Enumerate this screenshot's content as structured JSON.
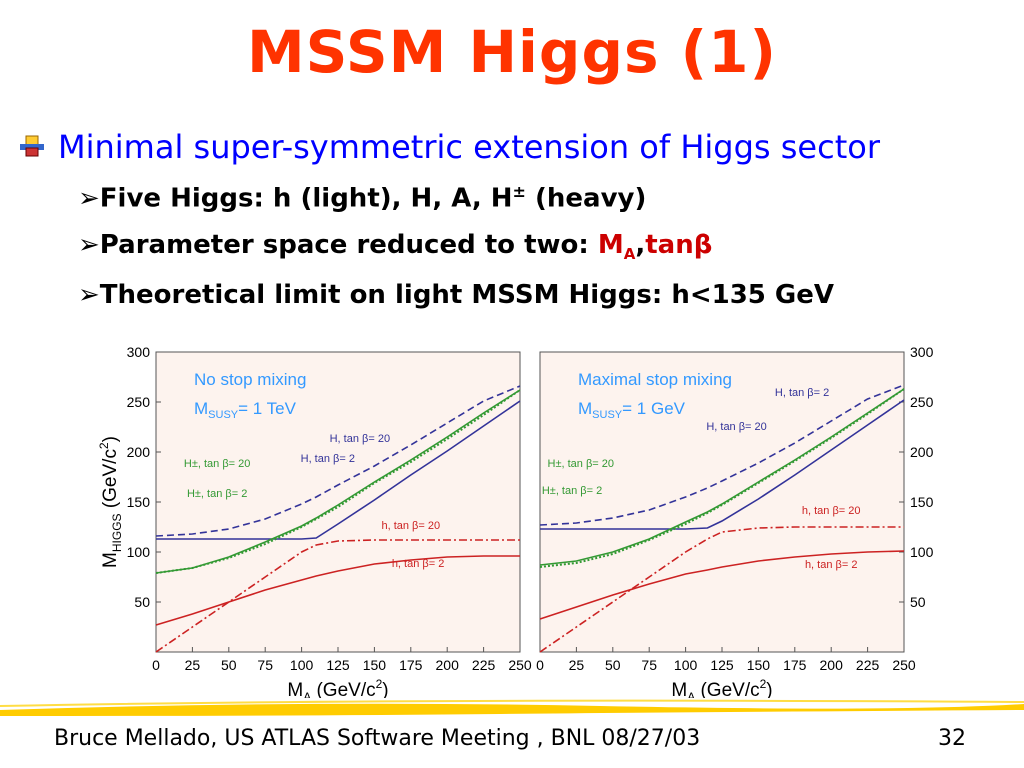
{
  "slide": {
    "title": "MSSM Higgs (1)",
    "bullet_main": "Minimal super-symmetric extension of Higgs sector",
    "sub1_text": "Five Higgs: h (light), H, A, H",
    "sub1_pm": "±",
    "sub1_tail": " (heavy)",
    "sub2_text": "Parameter space reduced to two: ",
    "sub2_ma": "M",
    "sub2_ma_sub": "A",
    "sub2_comma": ",",
    "sub2_tan": "tanβ",
    "sub3_text": "Theoretical limit on light MSSM Higgs: h<135 GeV",
    "footer": "Bruce Mellado, US ATLAS Software Meeting , BNL 08/27/03",
    "page_number": "32"
  },
  "colors": {
    "title": "#ff3300",
    "bullet_main": "#0000ff",
    "H_line": "#333399",
    "h_line": "#cc2222",
    "Hpm_line": "#339933",
    "chart_bg": "#fdf3ee",
    "panel_title": "#3399ff"
  },
  "chart_data": [
    {
      "type": "line",
      "title": "No stop mixing",
      "subtitle_main": "M",
      "subtitle_sub": "SUSY",
      "subtitle_value": "= 1 TeV",
      "xlabel_main": "M",
      "xlabel_sub": "A",
      "xlabel_unit": " (GeV/c",
      "xlabel_sup": "2",
      "xlabel_end": ")",
      "ylabel_main": "M",
      "ylabel_sub": "HIGGS",
      "ylabel_unit": " (GeV/c",
      "ylabel_sup": "2",
      "ylabel_end": ")",
      "xlim": [
        0,
        250
      ],
      "ylim": [
        0,
        300
      ],
      "xticks": [
        0,
        25,
        50,
        75,
        100,
        125,
        150,
        175,
        200,
        225,
        250
      ],
      "yticks": [
        50,
        100,
        150,
        200,
        250,
        300
      ],
      "y_axis_side": "left",
      "x": [
        0,
        25,
        50,
        75,
        100,
        110,
        125,
        150,
        175,
        200,
        225,
        250
      ],
      "series": [
        {
          "name": "H, tan β= 20",
          "style": "solid",
          "color": "#333399",
          "values": [
            113,
            113,
            113,
            113,
            113,
            114,
            128,
            152,
            177,
            201,
            226,
            251
          ]
        },
        {
          "name": "H, tan β= 2",
          "style": "dashed",
          "color": "#333399",
          "values": [
            116,
            118,
            123,
            133,
            148,
            155,
            167,
            186,
            207,
            229,
            251,
            266
          ]
        },
        {
          "name": "h, tan β= 20",
          "style": "dashdot",
          "color": "#cc2222",
          "values": [
            0,
            25,
            50,
            75,
            100,
            107,
            111,
            112,
            112,
            112,
            112,
            112
          ]
        },
        {
          "name": "h, tan β= 2",
          "style": "solid",
          "color": "#cc2222",
          "values": [
            27,
            38,
            50,
            62,
            72,
            76,
            81,
            88,
            92,
            95,
            96,
            96
          ]
        },
        {
          "name": "H±, tan β= 20",
          "style": "dotted",
          "color": "#339933",
          "values": [
            79,
            84,
            94,
            108,
            125,
            133,
            145,
            169,
            190,
            213,
            237,
            262
          ]
        },
        {
          "name": "H±, tan β= 2",
          "style": "solid",
          "color": "#339933",
          "values": [
            79,
            84,
            95,
            110,
            126,
            134,
            147,
            170,
            192,
            215,
            239,
            262
          ]
        }
      ],
      "annotations": [
        {
          "text": "H, tan β= 20",
          "x": 140,
          "y": 210
        },
        {
          "text": "H, tan β= 2",
          "x": 118,
          "y": 190
        },
        {
          "text": "h, tan β= 20",
          "x": 175,
          "y": 123
        },
        {
          "text": "h, tan β= 2",
          "x": 180,
          "y": 85
        },
        {
          "text": "H±, tan β= 20",
          "x": 42,
          "y": 185
        },
        {
          "text": "H±, tan β= 2",
          "x": 42,
          "y": 155
        }
      ]
    },
    {
      "type": "line",
      "title": "Maximal stop mixing",
      "subtitle_main": "M",
      "subtitle_sub": "SUSY",
      "subtitle_value": "= 1 GeV",
      "xlabel_main": "M",
      "xlabel_sub": "A",
      "xlabel_unit": " (GeV/c",
      "xlabel_sup": "2",
      "xlabel_end": ")",
      "xlim": [
        0,
        250
      ],
      "ylim": [
        0,
        300
      ],
      "xticks": [
        0,
        25,
        50,
        75,
        100,
        125,
        150,
        175,
        200,
        225,
        250
      ],
      "yticks": [
        50,
        100,
        150,
        200,
        250,
        300
      ],
      "y_axis_side": "right",
      "x": [
        0,
        25,
        50,
        75,
        100,
        115,
        125,
        150,
        175,
        200,
        225,
        250
      ],
      "series": [
        {
          "name": "H, tan β= 20",
          "style": "solid",
          "color": "#333399",
          "values": [
            123,
            123,
            123,
            123,
            123,
            124,
            131,
            153,
            177,
            202,
            227,
            252
          ]
        },
        {
          "name": "H, tan β= 2",
          "style": "dashed",
          "color": "#333399",
          "values": [
            127,
            129,
            134,
            142,
            155,
            164,
            171,
            189,
            209,
            231,
            253,
            267
          ]
        },
        {
          "name": "h, tan β= 20",
          "style": "dashdot",
          "color": "#cc2222",
          "values": [
            0,
            25,
            50,
            75,
            100,
            113,
            120,
            124,
            125,
            125,
            125,
            125
          ]
        },
        {
          "name": "h, tan β= 2",
          "style": "solid",
          "color": "#cc2222",
          "values": [
            33,
            45,
            57,
            68,
            78,
            82,
            85,
            91,
            95,
            98,
            100,
            101
          ]
        },
        {
          "name": "H±, tan β= 20",
          "style": "dotted",
          "color": "#339933",
          "values": [
            85,
            89,
            98,
            112,
            128,
            139,
            147,
            169,
            191,
            214,
            238,
            263
          ]
        },
        {
          "name": "H±, tan β= 2",
          "style": "solid",
          "color": "#339933",
          "values": [
            87,
            91,
            100,
            113,
            130,
            140,
            148,
            170,
            192,
            215,
            239,
            263
          ]
        }
      ],
      "annotations": [
        {
          "text": "H, tan β= 2",
          "x": 180,
          "y": 256
        },
        {
          "text": "H, tan β= 20",
          "x": 135,
          "y": 222
        },
        {
          "text": "h, tan β= 20",
          "x": 200,
          "y": 138
        },
        {
          "text": "h, tan β= 2",
          "x": 200,
          "y": 84
        },
        {
          "text": "H±, tan β= 20",
          "x": 28,
          "y": 185
        },
        {
          "text": "H±, tan β= 2",
          "x": 22,
          "y": 158
        }
      ]
    }
  ]
}
